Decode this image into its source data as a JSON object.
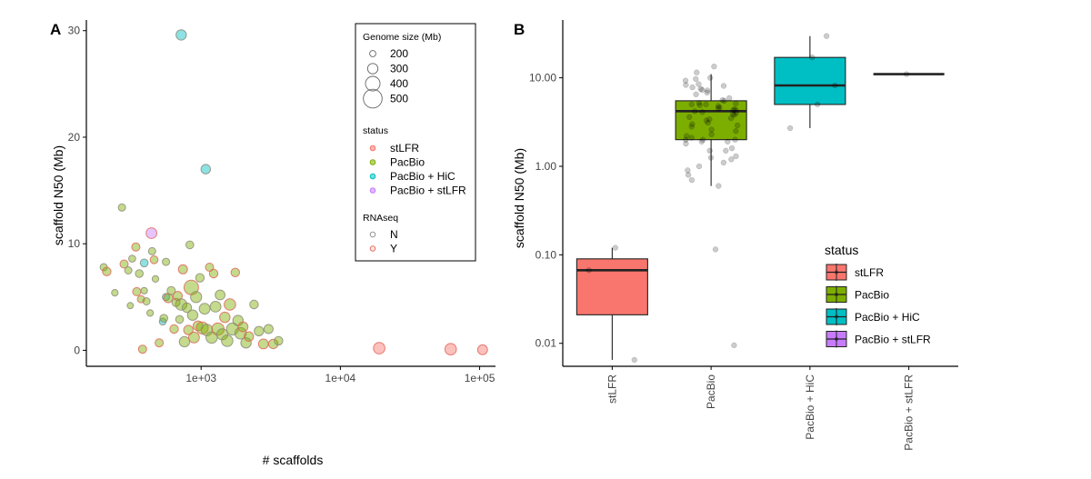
{
  "panel_a": {
    "label": "A",
    "chart_data": {
      "type": "scatter",
      "xlabel": "# scaffolds",
      "ylabel": "scaffold N50 (Mb)",
      "xscale": "log10",
      "xlim": [
        150,
        130000
      ],
      "ylim": [
        -1.5,
        31
      ],
      "xticks": [
        1000,
        10000,
        100000
      ],
      "xtick_labels": [
        "1e+03",
        "1e+04",
        "1e+05"
      ],
      "yticks": [
        0,
        10,
        20,
        30
      ],
      "ytick_labels": [
        "0",
        "10",
        "20",
        "30"
      ],
      "grid": false,
      "colors": {
        "stLFR": "#f8766d",
        "PacBio": "#7cae00",
        "PacBio + HiC": "#00bfc4",
        "PacBio + stLFR": "#c77cff"
      },
      "legend": {
        "placement": "top-right",
        "size_title": "Genome size (Mb)",
        "size_entries": [
          {
            "label": "200",
            "value": 200
          },
          {
            "label": "300",
            "value": 300
          },
          {
            "label": "400",
            "value": 400
          },
          {
            "label": "500",
            "value": 500
          }
        ],
        "status_title": "status",
        "status_entries": [
          "stLFR",
          "PacBio",
          "PacBio + HiC",
          "PacBio + stLFR"
        ],
        "rnaseq_title": "RNAseq",
        "rnaseq_entries": [
          "N",
          "Y"
        ]
      },
      "points": [
        {
          "x": 720,
          "y": 29.6,
          "size": 300,
          "status": "PacBio + HiC",
          "rnaseq": "N"
        },
        {
          "x": 1080,
          "y": 17.0,
          "size": 280,
          "status": "PacBio + HiC",
          "rnaseq": "N"
        },
        {
          "x": 440,
          "y": 11.0,
          "size": 310,
          "status": "PacBio + stLFR",
          "rnaseq": "Y"
        },
        {
          "x": 270,
          "y": 13.4,
          "size": 230,
          "status": "PacBio",
          "rnaseq": "N"
        },
        {
          "x": 390,
          "y": 8.2,
          "size": 240,
          "status": "PacBio + HiC",
          "rnaseq": "N"
        },
        {
          "x": 530,
          "y": 2.7,
          "size": 220,
          "status": "PacBio + HiC",
          "rnaseq": "N"
        },
        {
          "x": 560,
          "y": 5.0,
          "size": 230,
          "status": "PacBio + HiC",
          "rnaseq": "N"
        },
        {
          "x": 19000,
          "y": 0.2,
          "size": 330,
          "status": "stLFR",
          "rnaseq": "Y"
        },
        {
          "x": 62000,
          "y": 0.1,
          "size": 330,
          "status": "stLFR",
          "rnaseq": "Y"
        },
        {
          "x": 105000,
          "y": 0.05,
          "size": 290,
          "status": "stLFR",
          "rnaseq": "Y"
        },
        {
          "x": 200,
          "y": 7.8,
          "size": 230,
          "status": "PacBio",
          "rnaseq": "N"
        },
        {
          "x": 210,
          "y": 7.4,
          "size": 260,
          "status": "PacBio",
          "rnaseq": "Y"
        },
        {
          "x": 240,
          "y": 5.4,
          "size": 210,
          "status": "PacBio",
          "rnaseq": "N"
        },
        {
          "x": 280,
          "y": 8.1,
          "size": 250,
          "status": "PacBio",
          "rnaseq": "Y"
        },
        {
          "x": 300,
          "y": 7.5,
          "size": 230,
          "status": "PacBio",
          "rnaseq": "N"
        },
        {
          "x": 310,
          "y": 4.2,
          "size": 200,
          "status": "PacBio",
          "rnaseq": "N"
        },
        {
          "x": 320,
          "y": 8.6,
          "size": 220,
          "status": "PacBio",
          "rnaseq": "N"
        },
        {
          "x": 340,
          "y": 9.7,
          "size": 250,
          "status": "PacBio",
          "rnaseq": "Y"
        },
        {
          "x": 345,
          "y": 5.5,
          "size": 250,
          "status": "PacBio",
          "rnaseq": "Y"
        },
        {
          "x": 360,
          "y": 7.2,
          "size": 240,
          "status": "PacBio",
          "rnaseq": "N"
        },
        {
          "x": 370,
          "y": 4.8,
          "size": 230,
          "status": "PacBio",
          "rnaseq": "Y"
        },
        {
          "x": 380,
          "y": 0.1,
          "size": 250,
          "status": "PacBio",
          "rnaseq": "Y"
        },
        {
          "x": 390,
          "y": 5.6,
          "size": 210,
          "status": "PacBio",
          "rnaseq": "N"
        },
        {
          "x": 405,
          "y": 4.6,
          "size": 230,
          "status": "PacBio",
          "rnaseq": "N"
        },
        {
          "x": 430,
          "y": 3.5,
          "size": 210,
          "status": "PacBio",
          "rnaseq": "N"
        },
        {
          "x": 445,
          "y": 9.3,
          "size": 230,
          "status": "PacBio",
          "rnaseq": "N"
        },
        {
          "x": 460,
          "y": 8.5,
          "size": 240,
          "status": "PacBio",
          "rnaseq": "Y"
        },
        {
          "x": 470,
          "y": 6.7,
          "size": 210,
          "status": "PacBio",
          "rnaseq": "N"
        },
        {
          "x": 500,
          "y": 0.7,
          "size": 250,
          "status": "PacBio",
          "rnaseq": "Y"
        },
        {
          "x": 540,
          "y": 3.0,
          "size": 240,
          "status": "PacBio",
          "rnaseq": "N"
        },
        {
          "x": 560,
          "y": 8.3,
          "size": 230,
          "status": "PacBio",
          "rnaseq": "N"
        },
        {
          "x": 580,
          "y": 4.9,
          "size": 270,
          "status": "PacBio",
          "rnaseq": "Y"
        },
        {
          "x": 610,
          "y": 5.6,
          "size": 250,
          "status": "PacBio",
          "rnaseq": "N"
        },
        {
          "x": 640,
          "y": 2.0,
          "size": 260,
          "status": "PacBio",
          "rnaseq": "Y"
        },
        {
          "x": 660,
          "y": 4.5,
          "size": 250,
          "status": "PacBio",
          "rnaseq": "N"
        },
        {
          "x": 680,
          "y": 5.1,
          "size": 270,
          "status": "PacBio",
          "rnaseq": "Y"
        },
        {
          "x": 700,
          "y": 2.9,
          "size": 240,
          "status": "PacBio",
          "rnaseq": "N"
        },
        {
          "x": 720,
          "y": 4.3,
          "size": 330,
          "status": "PacBio",
          "rnaseq": "N"
        },
        {
          "x": 740,
          "y": 7.6,
          "size": 270,
          "status": "PacBio",
          "rnaseq": "Y"
        },
        {
          "x": 760,
          "y": 0.8,
          "size": 300,
          "status": "PacBio",
          "rnaseq": "N"
        },
        {
          "x": 790,
          "y": 4.0,
          "size": 280,
          "status": "PacBio",
          "rnaseq": "N"
        },
        {
          "x": 810,
          "y": 1.9,
          "size": 280,
          "status": "PacBio",
          "rnaseq": "Y"
        },
        {
          "x": 830,
          "y": 9.9,
          "size": 240,
          "status": "PacBio",
          "rnaseq": "N"
        },
        {
          "x": 850,
          "y": 5.9,
          "size": 400,
          "status": "PacBio",
          "rnaseq": "Y"
        },
        {
          "x": 870,
          "y": 3.3,
          "size": 300,
          "status": "PacBio",
          "rnaseq": "N"
        },
        {
          "x": 890,
          "y": 1.2,
          "size": 310,
          "status": "PacBio",
          "rnaseq": "Y"
        },
        {
          "x": 920,
          "y": 5.0,
          "size": 320,
          "status": "PacBio",
          "rnaseq": "N"
        },
        {
          "x": 950,
          "y": 2.3,
          "size": 290,
          "status": "PacBio",
          "rnaseq": "Y"
        },
        {
          "x": 980,
          "y": 6.8,
          "size": 260,
          "status": "PacBio",
          "rnaseq": "N"
        },
        {
          "x": 1020,
          "y": 2.1,
          "size": 340,
          "status": "PacBio",
          "rnaseq": "Y"
        },
        {
          "x": 1060,
          "y": 3.9,
          "size": 310,
          "status": "PacBio",
          "rnaseq": "N"
        },
        {
          "x": 1100,
          "y": 1.9,
          "size": 330,
          "status": "PacBio",
          "rnaseq": "N"
        },
        {
          "x": 1150,
          "y": 7.8,
          "size": 250,
          "status": "PacBio",
          "rnaseq": "Y"
        },
        {
          "x": 1190,
          "y": 1.2,
          "size": 330,
          "status": "PacBio",
          "rnaseq": "N"
        },
        {
          "x": 1230,
          "y": 7.2,
          "size": 260,
          "status": "PacBio",
          "rnaseq": "Y"
        },
        {
          "x": 1270,
          "y": 4.1,
          "size": 310,
          "status": "PacBio",
          "rnaseq": "N"
        },
        {
          "x": 1320,
          "y": 2.0,
          "size": 350,
          "status": "PacBio",
          "rnaseq": "Y"
        },
        {
          "x": 1370,
          "y": 5.2,
          "size": 290,
          "status": "PacBio",
          "rnaseq": "N"
        },
        {
          "x": 1420,
          "y": 1.5,
          "size": 320,
          "status": "PacBio",
          "rnaseq": "N"
        },
        {
          "x": 1480,
          "y": 3.1,
          "size": 300,
          "status": "PacBio",
          "rnaseq": "Y"
        },
        {
          "x": 1540,
          "y": 0.9,
          "size": 330,
          "status": "PacBio",
          "rnaseq": "N"
        },
        {
          "x": 1610,
          "y": 4.3,
          "size": 330,
          "status": "PacBio",
          "rnaseq": "Y"
        },
        {
          "x": 1680,
          "y": 2.0,
          "size": 340,
          "status": "PacBio",
          "rnaseq": "N"
        },
        {
          "x": 1760,
          "y": 7.3,
          "size": 260,
          "status": "PacBio",
          "rnaseq": "Y"
        },
        {
          "x": 1840,
          "y": 2.8,
          "size": 300,
          "status": "PacBio",
          "rnaseq": "N"
        },
        {
          "x": 1920,
          "y": 1.6,
          "size": 330,
          "status": "PacBio",
          "rnaseq": "N"
        },
        {
          "x": 2000,
          "y": 2.2,
          "size": 290,
          "status": "PacBio",
          "rnaseq": "Y"
        },
        {
          "x": 2100,
          "y": 0.7,
          "size": 300,
          "status": "PacBio",
          "rnaseq": "N"
        },
        {
          "x": 2200,
          "y": 1.3,
          "size": 280,
          "status": "PacBio",
          "rnaseq": "Y"
        },
        {
          "x": 2400,
          "y": 4.3,
          "size": 260,
          "status": "PacBio",
          "rnaseq": "N"
        },
        {
          "x": 2600,
          "y": 1.8,
          "size": 280,
          "status": "PacBio",
          "rnaseq": "N"
        },
        {
          "x": 2800,
          "y": 0.6,
          "size": 290,
          "status": "PacBio",
          "rnaseq": "Y"
        },
        {
          "x": 3050,
          "y": 2.0,
          "size": 270,
          "status": "PacBio",
          "rnaseq": "N"
        },
        {
          "x": 3300,
          "y": 0.6,
          "size": 280,
          "status": "PacBio",
          "rnaseq": "Y"
        },
        {
          "x": 3600,
          "y": 0.9,
          "size": 260,
          "status": "PacBio",
          "rnaseq": "N"
        }
      ]
    }
  },
  "panel_b": {
    "label": "B",
    "chart_data": {
      "type": "box",
      "xlabel": "",
      "ylabel": "scaffold N50 (Mb)",
      "yscale": "log10",
      "ylim": [
        0.0055,
        45
      ],
      "yticks": [
        0.01,
        0.1,
        1,
        10
      ],
      "ytick_labels": [
        "0.01",
        "0.10",
        "1.00",
        "10.00"
      ],
      "categories": [
        "stLFR",
        "PacBio",
        "PacBio + HiC",
        "PacBio + stLFR"
      ],
      "colors": {
        "stLFR": "#f8766d",
        "PacBio": "#7cae00",
        "PacBio + HiC": "#00bfc4",
        "PacBio + stLFR": "#c77cff"
      },
      "legend": {
        "placement": "bottom-right",
        "title": "status",
        "entries": [
          "stLFR",
          "PacBio",
          "PacBio + HiC",
          "PacBio + stLFR"
        ]
      },
      "boxes": [
        {
          "category": "stLFR",
          "q1": 0.021,
          "median": 0.067,
          "q3": 0.09,
          "whisker_low": 0.0065,
          "whisker_high": 0.12
        },
        {
          "category": "PacBio",
          "q1": 2.0,
          "median": 4.2,
          "q3": 5.5,
          "whisker_low": 0.6,
          "whisker_high": 11.0
        },
        {
          "category": "PacBio + HiC",
          "q1": 5.0,
          "median": 8.2,
          "q3": 17.0,
          "whisker_low": 2.7,
          "whisker_high": 29.6
        },
        {
          "category": "PacBio + stLFR",
          "q1": 11.0,
          "median": 11.0,
          "q3": 11.0,
          "whisker_low": 11.0,
          "whisker_high": 11.0
        }
      ],
      "points": {
        "stLFR": [
          0.0065,
          0.067,
          0.12
        ],
        "PacBio": [
          0.0095,
          0.115,
          0.6,
          0.7,
          0.8,
          0.9,
          1.0,
          1.1,
          1.2,
          1.25,
          1.3,
          1.5,
          1.5,
          1.6,
          1.8,
          1.9,
          1.9,
          2.0,
          2.0,
          2.0,
          2.1,
          2.2,
          2.3,
          2.5,
          2.6,
          2.8,
          2.9,
          3.0,
          3.1,
          3.3,
          3.4,
          3.5,
          3.6,
          3.8,
          3.9,
          4.0,
          4.1,
          4.2,
          4.3,
          4.3,
          4.4,
          4.5,
          4.6,
          4.8,
          4.9,
          5.0,
          5.0,
          5.1,
          5.2,
          5.5,
          5.6,
          5.9,
          6.5,
          6.8,
          7.2,
          7.3,
          7.5,
          7.8,
          8.1,
          8.3,
          8.5,
          9.3,
          9.7,
          10.0,
          11.5,
          13.4
        ],
        "PacBio + HiC": [
          2.7,
          5.0,
          8.2,
          17.0,
          29.6
        ],
        "PacBio + stLFR": [
          11.0
        ]
      }
    }
  }
}
